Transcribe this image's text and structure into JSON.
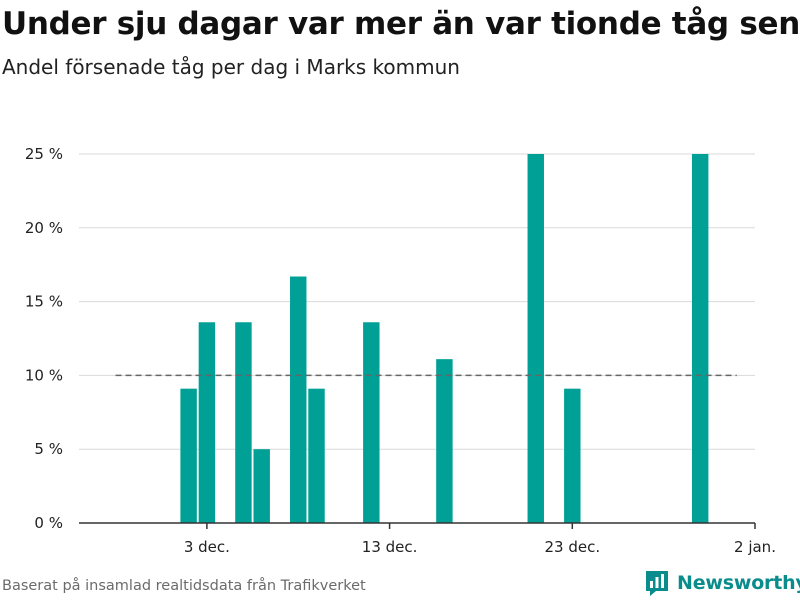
{
  "header": {
    "title": "Under sju dagar var mer än var tionde tåg sent",
    "subtitle": "Andel försenade tåg per dag i Marks kommun"
  },
  "footer": {
    "source": "Baserat på insamlad realtidsdata från Trafikverket",
    "brand": "Newsworthy",
    "brand_icon": "bar-chart-bubble-icon"
  },
  "colors": {
    "bar": "#00a096",
    "grid": "#d9d9d9",
    "reference_line": "#666666",
    "axis": "#333333",
    "brand": "#0a8c8c"
  },
  "chart_data": {
    "type": "bar",
    "title": "Andel försenade tåg per dag i Marks kommun",
    "xlabel": "",
    "ylabel": "",
    "x_range": [
      "2023-11-26",
      "2024-01-02"
    ],
    "ylim": [
      0,
      25
    ],
    "y_ticks": [
      0,
      5,
      10,
      15,
      20,
      25
    ],
    "y_tick_labels": [
      "0 %",
      "5 %",
      "10 %",
      "15 %",
      "20 %",
      "25 %"
    ],
    "x_ticks": [
      "2023-12-03",
      "2023-12-13",
      "2023-12-23",
      "2024-01-02"
    ],
    "x_tick_labels": [
      "3 dec.",
      "13 dec.",
      "23 dec.",
      "2 jan."
    ],
    "grid": true,
    "reference_line": {
      "y": 10,
      "x_from": "2023-11-28",
      "x_to": "2024-01-01",
      "style": "dashed"
    },
    "series": [
      {
        "dates": [
          "2023-12-02",
          "2023-12-03",
          "2023-12-05",
          "2023-12-06",
          "2023-12-08",
          "2023-12-09",
          "2023-12-12",
          "2023-12-16",
          "2023-12-21",
          "2023-12-23",
          "2023-12-30"
        ],
        "values": [
          9.1,
          13.6,
          13.6,
          5.0,
          16.7,
          9.1,
          13.6,
          11.1,
          25.0,
          9.1,
          25.0
        ]
      }
    ]
  }
}
